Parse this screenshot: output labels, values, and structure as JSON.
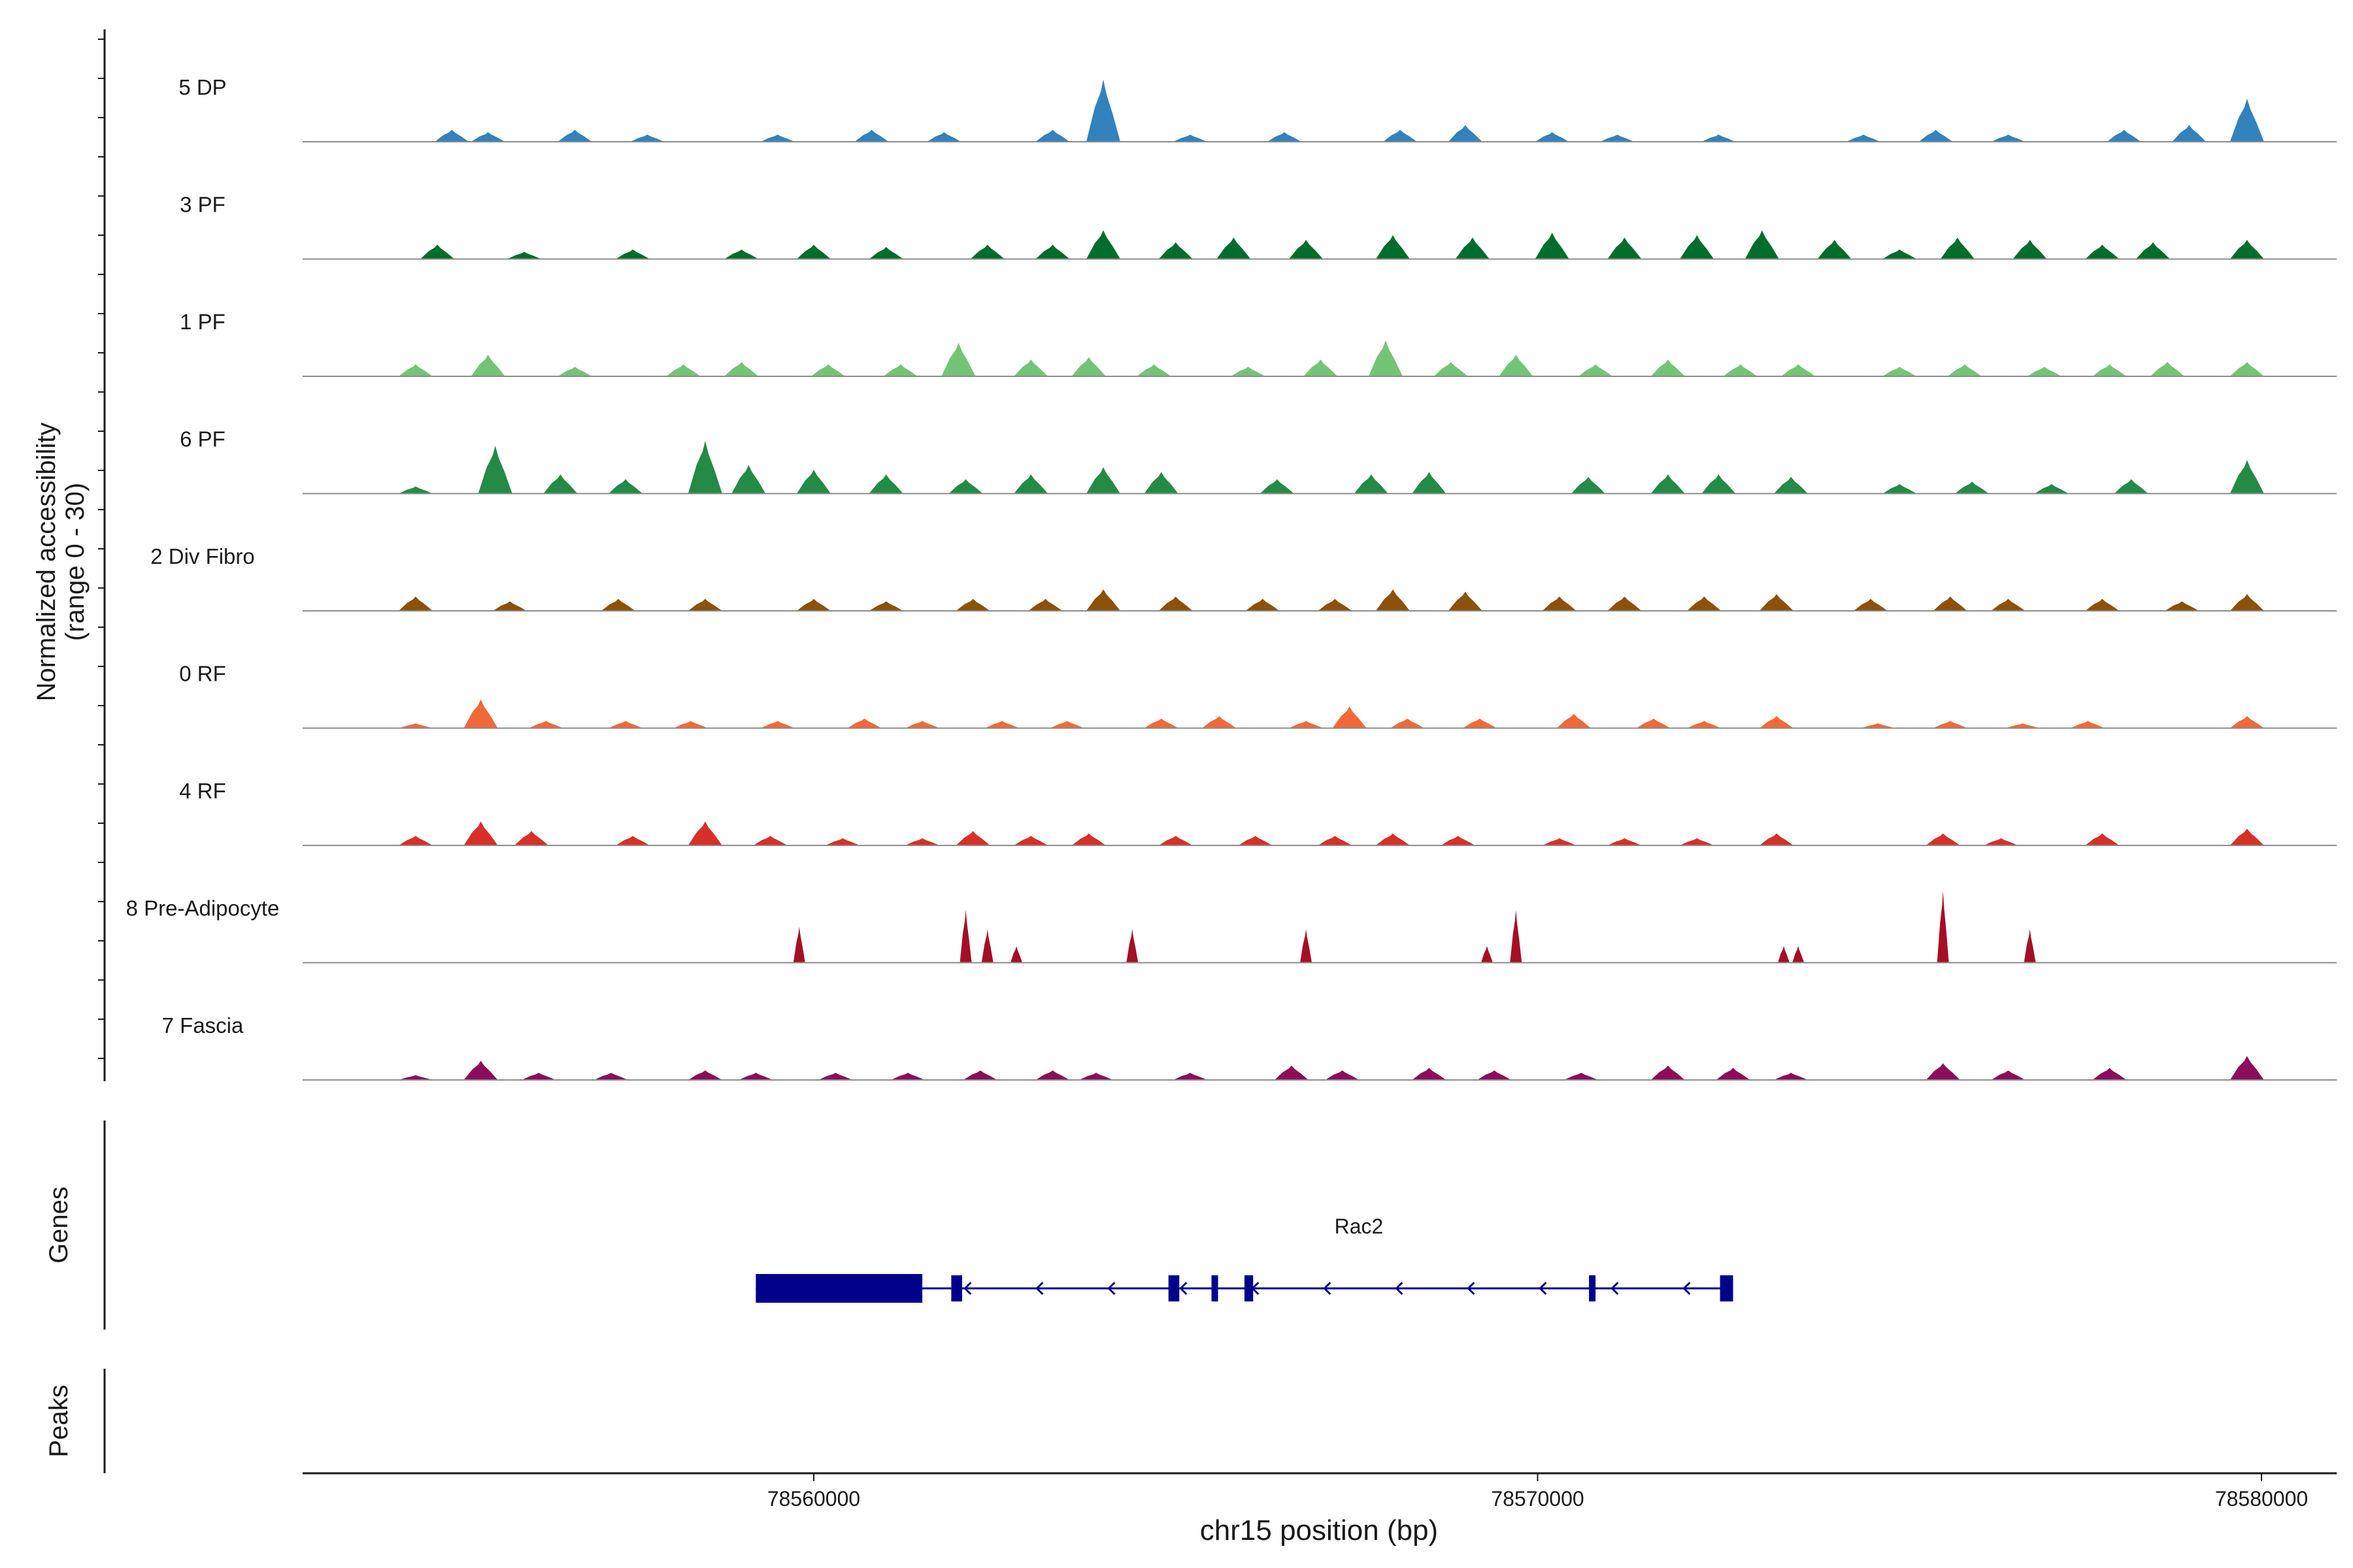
{
  "chart_data": {
    "type": "area",
    "title": "",
    "ylabel_line1": "Normalized accessibility",
    "ylabel_line2": "(range 0 - 30)",
    "ylim": [
      0,
      30
    ],
    "xlabel": "chr15 position (bp)",
    "x_range": [
      78553000,
      78581000
    ],
    "x_ticks": [
      78560000,
      78570000,
      78580000
    ],
    "x_tick_labels": [
      "78560000",
      "78570000",
      "78580000"
    ],
    "genes_label": "Genes",
    "peaks_label": "Peaks",
    "tracks": [
      {
        "name": "5 DP",
        "color": "#3182bd",
        "peaks": [
          [
            78555000,
            5
          ],
          [
            78555500,
            4
          ],
          [
            78556700,
            5
          ],
          [
            78557700,
            3
          ],
          [
            78559500,
            3
          ],
          [
            78560800,
            5
          ],
          [
            78561800,
            4
          ],
          [
            78563300,
            5
          ],
          [
            78564000,
            26
          ],
          [
            78565200,
            3
          ],
          [
            78566500,
            4
          ],
          [
            78568100,
            5
          ],
          [
            78569000,
            7
          ],
          [
            78570200,
            4
          ],
          [
            78571100,
            3
          ],
          [
            78572500,
            3
          ],
          [
            78574500,
            3
          ],
          [
            78575500,
            5
          ],
          [
            78576500,
            3
          ],
          [
            78578100,
            5
          ],
          [
            78579000,
            7
          ],
          [
            78579800,
            18
          ]
        ]
      },
      {
        "name": "3 PF",
        "color": "#006d2c",
        "peaks": [
          [
            78554800,
            6
          ],
          [
            78556000,
            3
          ],
          [
            78557500,
            4
          ],
          [
            78559000,
            4
          ],
          [
            78560000,
            6
          ],
          [
            78561000,
            5
          ],
          [
            78562400,
            6
          ],
          [
            78563300,
            6
          ],
          [
            78564000,
            12
          ],
          [
            78565000,
            7
          ],
          [
            78565800,
            9
          ],
          [
            78566800,
            8
          ],
          [
            78568000,
            10
          ],
          [
            78569100,
            9
          ],
          [
            78570200,
            11
          ],
          [
            78571200,
            9
          ],
          [
            78572200,
            10
          ],
          [
            78573100,
            12
          ],
          [
            78574100,
            8
          ],
          [
            78575000,
            4
          ],
          [
            78575800,
            9
          ],
          [
            78576800,
            8
          ],
          [
            78577800,
            6
          ],
          [
            78578500,
            7
          ],
          [
            78579800,
            8
          ]
        ]
      },
      {
        "name": "1 PF",
        "color": "#74c476",
        "peaks": [
          [
            78554500,
            5
          ],
          [
            78555500,
            9
          ],
          [
            78556700,
            4
          ],
          [
            78558200,
            5
          ],
          [
            78559000,
            6
          ],
          [
            78560200,
            5
          ],
          [
            78561200,
            5
          ],
          [
            78562000,
            14
          ],
          [
            78563000,
            7
          ],
          [
            78563800,
            8
          ],
          [
            78564700,
            5
          ],
          [
            78566000,
            4
          ],
          [
            78567000,
            7
          ],
          [
            78567900,
            15
          ],
          [
            78568800,
            6
          ],
          [
            78569700,
            9
          ],
          [
            78570800,
            5
          ],
          [
            78571800,
            7
          ],
          [
            78572800,
            5
          ],
          [
            78573600,
            5
          ],
          [
            78575000,
            4
          ],
          [
            78575900,
            5
          ],
          [
            78577000,
            4
          ],
          [
            78577900,
            5
          ],
          [
            78578700,
            6
          ],
          [
            78579800,
            6
          ]
        ]
      },
      {
        "name": "6 PF",
        "color": "#238b45",
        "peaks": [
          [
            78554500,
            3
          ],
          [
            78555600,
            20
          ],
          [
            78556500,
            8
          ],
          [
            78557400,
            6
          ],
          [
            78558500,
            22
          ],
          [
            78559100,
            12
          ],
          [
            78560000,
            10
          ],
          [
            78561000,
            8
          ],
          [
            78562100,
            6
          ],
          [
            78563000,
            8
          ],
          [
            78564000,
            11
          ],
          [
            78564800,
            9
          ],
          [
            78566400,
            6
          ],
          [
            78567700,
            8
          ],
          [
            78568500,
            9
          ],
          [
            78570700,
            7
          ],
          [
            78571800,
            8
          ],
          [
            78572500,
            8
          ],
          [
            78573500,
            7
          ],
          [
            78575000,
            4
          ],
          [
            78576000,
            5
          ],
          [
            78577100,
            4
          ],
          [
            78578200,
            6
          ],
          [
            78579800,
            14
          ]
        ]
      },
      {
        "name": "2 Div Fibro",
        "color": "#8c510a",
        "peaks": [
          [
            78554500,
            6
          ],
          [
            78555800,
            4
          ],
          [
            78557300,
            5
          ],
          [
            78558500,
            5
          ],
          [
            78560000,
            5
          ],
          [
            78561000,
            4
          ],
          [
            78562200,
            5
          ],
          [
            78563200,
            5
          ],
          [
            78564000,
            9
          ],
          [
            78565000,
            6
          ],
          [
            78566200,
            5
          ],
          [
            78567200,
            5
          ],
          [
            78568000,
            9
          ],
          [
            78569000,
            8
          ],
          [
            78570300,
            6
          ],
          [
            78571200,
            6
          ],
          [
            78572300,
            6
          ],
          [
            78573300,
            7
          ],
          [
            78574600,
            5
          ],
          [
            78575700,
            6
          ],
          [
            78576500,
            5
          ],
          [
            78577800,
            5
          ],
          [
            78578900,
            4
          ],
          [
            78579800,
            7
          ]
        ]
      },
      {
        "name": "0 RF",
        "color": "#f16939",
        "peaks": [
          [
            78554500,
            2
          ],
          [
            78555400,
            12
          ],
          [
            78556300,
            3
          ],
          [
            78557400,
            3
          ],
          [
            78558300,
            3
          ],
          [
            78559500,
            3
          ],
          [
            78560700,
            4
          ],
          [
            78561500,
            3
          ],
          [
            78562600,
            3
          ],
          [
            78563500,
            3
          ],
          [
            78564800,
            4
          ],
          [
            78565600,
            5
          ],
          [
            78566800,
            3
          ],
          [
            78567400,
            9
          ],
          [
            78568200,
            4
          ],
          [
            78569200,
            4
          ],
          [
            78570500,
            6
          ],
          [
            78571600,
            4
          ],
          [
            78572300,
            3
          ],
          [
            78573300,
            5
          ],
          [
            78574700,
            2
          ],
          [
            78575700,
            3
          ],
          [
            78576700,
            2
          ],
          [
            78577600,
            3
          ],
          [
            78579800,
            5
          ]
        ]
      },
      {
        "name": "4 RF",
        "color": "#d73027",
        "peaks": [
          [
            78554500,
            4
          ],
          [
            78555400,
            10
          ],
          [
            78556100,
            6
          ],
          [
            78557500,
            4
          ],
          [
            78558500,
            10
          ],
          [
            78559400,
            4
          ],
          [
            78560400,
            3
          ],
          [
            78561500,
            3
          ],
          [
            78562200,
            6
          ],
          [
            78563000,
            4
          ],
          [
            78563800,
            5
          ],
          [
            78565000,
            4
          ],
          [
            78566100,
            4
          ],
          [
            78567200,
            4
          ],
          [
            78568000,
            5
          ],
          [
            78568900,
            4
          ],
          [
            78570300,
            3
          ],
          [
            78571200,
            3
          ],
          [
            78572200,
            3
          ],
          [
            78573300,
            5
          ],
          [
            78575600,
            5
          ],
          [
            78576400,
            3
          ],
          [
            78577800,
            5
          ],
          [
            78579800,
            7
          ]
        ]
      },
      {
        "name": "8 Pre-Adipocyte",
        "color": "#a50f25",
        "peaks": [
          [
            78559800,
            15
          ],
          [
            78562100,
            22
          ],
          [
            78562400,
            14
          ],
          [
            78562800,
            7
          ],
          [
            78564400,
            14
          ],
          [
            78566800,
            14
          ],
          [
            78569300,
            7
          ],
          [
            78569700,
            22
          ],
          [
            78573400,
            7
          ],
          [
            78573600,
            7
          ],
          [
            78575600,
            30
          ],
          [
            78576800,
            14
          ]
        ]
      },
      {
        "name": "7 Fascia",
        "color": "#8c0d5a",
        "peaks": [
          [
            78554500,
            2
          ],
          [
            78555400,
            8
          ],
          [
            78556200,
            3
          ],
          [
            78557200,
            3
          ],
          [
            78558500,
            4
          ],
          [
            78559200,
            3
          ],
          [
            78560300,
            3
          ],
          [
            78561300,
            3
          ],
          [
            78562300,
            4
          ],
          [
            78563300,
            4
          ],
          [
            78563900,
            3
          ],
          [
            78565200,
            3
          ],
          [
            78566600,
            6
          ],
          [
            78567300,
            4
          ],
          [
            78568500,
            5
          ],
          [
            78569400,
            4
          ],
          [
            78570600,
            3
          ],
          [
            78571800,
            6
          ],
          [
            78572700,
            5
          ],
          [
            78573500,
            3
          ],
          [
            78575600,
            7
          ],
          [
            78576500,
            4
          ],
          [
            78577900,
            5
          ],
          [
            78579800,
            10
          ]
        ]
      }
    ],
    "gene": {
      "name": "Rac2",
      "color": "#00008b",
      "start": 78559200,
      "end": 78572700,
      "strand": "-",
      "exons": [
        [
          78559200,
          78561500
        ],
        [
          78561900,
          78562050
        ],
        [
          78564900,
          78565050
        ],
        [
          78565500,
          78565580
        ],
        [
          78565950,
          78566070
        ],
        [
          78570730,
          78570780
        ],
        [
          78572520,
          78572700
        ]
      ]
    }
  }
}
